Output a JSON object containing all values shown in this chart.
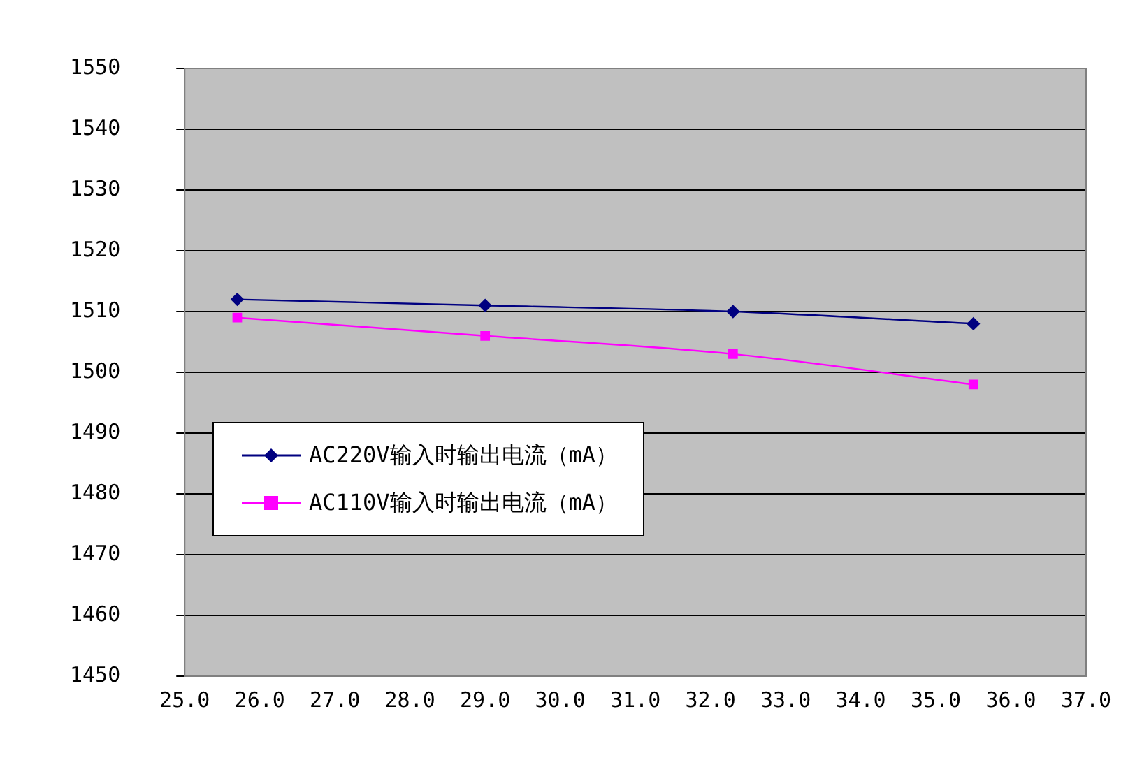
{
  "chart_data": {
    "type": "line",
    "x": [
      25.7,
      29.0,
      32.3,
      35.5
    ],
    "series": [
      {
        "name": "AC220V输入时输出电流（mA）",
        "color": "#000080",
        "values": [
          1512,
          1511,
          1510,
          1508
        ],
        "marker": "diamond"
      },
      {
        "name": "AC110V输入时输出电流（mA）",
        "color": "#ff00ff",
        "values": [
          1509,
          1506,
          1503,
          1498
        ],
        "marker": "square"
      }
    ],
    "xlim": [
      25,
      37
    ],
    "xticks": [
      {
        "value": 25,
        "label": "25.0"
      },
      {
        "value": 26,
        "label": "26.0"
      },
      {
        "value": 27,
        "label": "27.0"
      },
      {
        "value": 28,
        "label": "28.0"
      },
      {
        "value": 29,
        "label": "29.0"
      },
      {
        "value": 30,
        "label": "30.0"
      },
      {
        "value": 31,
        "label": "31.0"
      },
      {
        "value": 32,
        "label": "32.0"
      },
      {
        "value": 33,
        "label": "33.0"
      },
      {
        "value": 34,
        "label": "34.0"
      },
      {
        "value": 35,
        "label": "35.0"
      },
      {
        "value": 36,
        "label": "36.0"
      },
      {
        "value": 37,
        "label": "37.0"
      }
    ],
    "ylim": [
      1450,
      1550
    ],
    "yticks": [
      1450,
      1460,
      1470,
      1480,
      1490,
      1500,
      1510,
      1520,
      1530,
      1540,
      1550
    ],
    "grid": "y",
    "legend": "left"
  }
}
